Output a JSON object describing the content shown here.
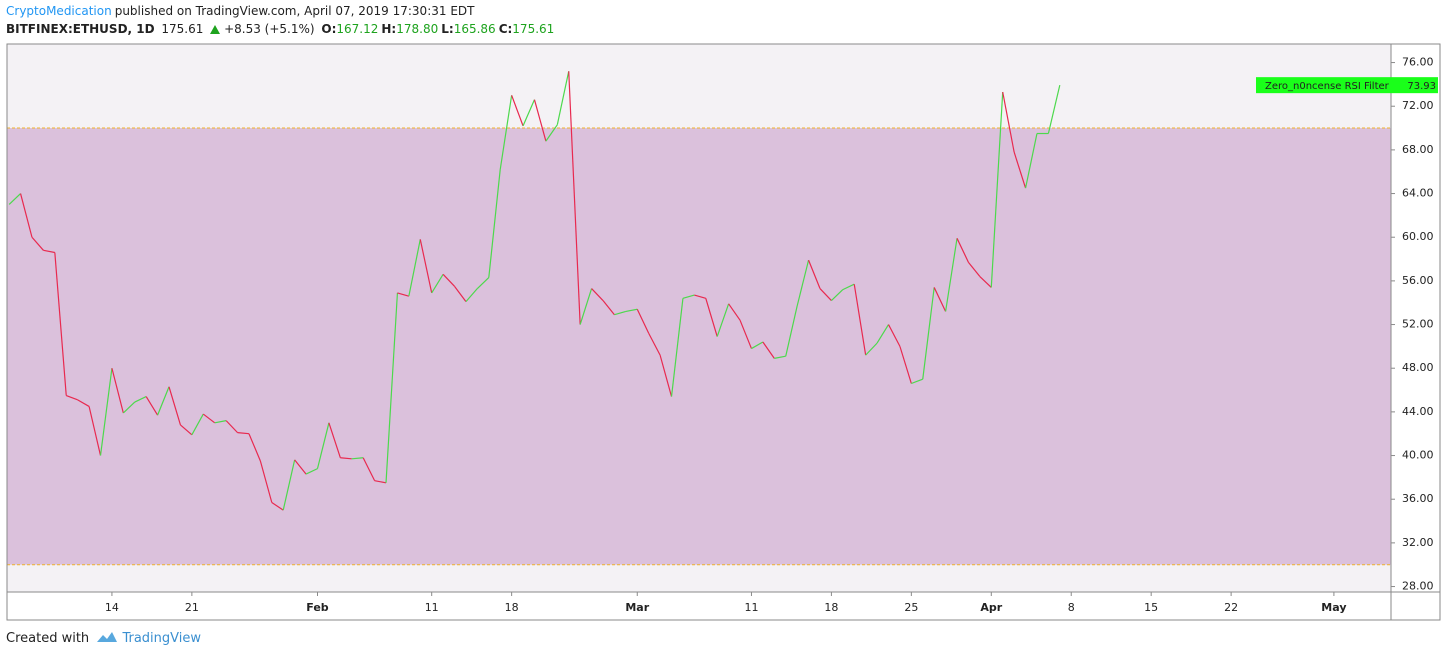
{
  "header": {
    "author": "CryptoMedication",
    "published": "published on TradingView.com, April 07, 2019 17:30:31 EDT",
    "symbol": "BITFINEX:ETHUSD, 1D",
    "last": "175.61",
    "change": "+8.53 (+5.1%)",
    "ohlc": [
      {
        "label": "O:",
        "value": "167.12"
      },
      {
        "label": "H:",
        "value": "178.80"
      },
      {
        "label": "L:",
        "value": "165.86"
      },
      {
        "label": "C:",
        "value": "175.61"
      }
    ]
  },
  "footer": {
    "created": "Created with",
    "brand": "TradingView"
  },
  "chart_data": {
    "type": "line",
    "x": [
      "2019-01-05",
      "2019-01-06",
      "2019-01-07",
      "2019-01-08",
      "2019-01-09",
      "2019-01-10",
      "2019-01-11",
      "2019-01-12",
      "2019-01-13",
      "2019-01-14",
      "2019-01-15",
      "2019-01-16",
      "2019-01-17",
      "2019-01-18",
      "2019-01-19",
      "2019-01-20",
      "2019-01-21",
      "2019-01-22",
      "2019-01-23",
      "2019-01-24",
      "2019-01-25",
      "2019-01-26",
      "2019-01-27",
      "2019-01-28",
      "2019-01-29",
      "2019-01-30",
      "2019-01-31",
      "2019-02-01",
      "2019-02-02",
      "2019-02-03",
      "2019-02-04",
      "2019-02-05",
      "2019-02-06",
      "2019-02-07",
      "2019-02-08",
      "2019-02-09",
      "2019-02-10",
      "2019-02-11",
      "2019-02-12",
      "2019-02-13",
      "2019-02-14",
      "2019-02-15",
      "2019-02-16",
      "2019-02-17",
      "2019-02-18",
      "2019-02-19",
      "2019-02-20",
      "2019-02-21",
      "2019-02-22",
      "2019-02-23",
      "2019-02-24",
      "2019-02-25",
      "2019-02-26",
      "2019-02-27",
      "2019-02-28",
      "2019-03-01",
      "2019-03-02",
      "2019-03-03",
      "2019-03-04",
      "2019-03-05",
      "2019-03-06",
      "2019-03-07",
      "2019-03-08",
      "2019-03-09",
      "2019-03-10",
      "2019-03-11",
      "2019-03-12",
      "2019-03-13",
      "2019-03-14",
      "2019-03-15",
      "2019-03-16",
      "2019-03-17",
      "2019-03-18",
      "2019-03-19",
      "2019-03-20",
      "2019-03-21",
      "2019-03-22",
      "2019-03-23",
      "2019-03-24",
      "2019-03-25",
      "2019-03-26",
      "2019-03-27",
      "2019-03-28",
      "2019-03-29",
      "2019-03-30",
      "2019-03-31",
      "2019-04-01",
      "2019-04-02",
      "2019-04-03",
      "2019-04-04",
      "2019-04-05",
      "2019-04-06",
      "2019-04-07"
    ],
    "series": [
      {
        "name": "Zero_n0ncense RSI Filter",
        "up_color": "#4cd94c",
        "down_color": "#e8294f",
        "label_color": "#1aff1a",
        "values": [
          63.0,
          64.0,
          60.0,
          58.8,
          58.6,
          45.5,
          45.1,
          44.5,
          40.0,
          48.0,
          43.9,
          44.9,
          45.4,
          43.7,
          46.3,
          42.8,
          41.9,
          43.8,
          43.0,
          43.2,
          42.1,
          42.0,
          39.5,
          35.7,
          35.0,
          39.6,
          38.3,
          38.8,
          43.0,
          39.8,
          39.7,
          39.8,
          37.7,
          37.5,
          54.9,
          54.6,
          59.8,
          54.9,
          56.6,
          55.5,
          54.1,
          55.3,
          56.3,
          66.2,
          73.0,
          70.2,
          72.6,
          68.8,
          70.3,
          75.2,
          52.0,
          55.3,
          54.2,
          52.9,
          53.2,
          53.4,
          51.2,
          49.2,
          45.4,
          54.4,
          54.7,
          54.4,
          50.9,
          53.9,
          52.4,
          49.8,
          50.4,
          48.9,
          49.1,
          53.7,
          57.9,
          55.3,
          54.2,
          55.2,
          55.7,
          49.2,
          50.3,
          52.0,
          50.0,
          46.6,
          47.0,
          55.4,
          53.2,
          59.9,
          57.7,
          56.4,
          55.4,
          73.3,
          67.8,
          64.5,
          69.5,
          69.5,
          73.93
        ]
      }
    ],
    "band": {
      "upper": 70,
      "lower": 30,
      "fill": "#dbc1dc",
      "line_color": "#f0b429"
    },
    "xlim": [
      "2019-01-04T19:30",
      "2019-05-06T00:00"
    ],
    "xticks": [
      {
        "value": "2019-01-14",
        "label": "14"
      },
      {
        "value": "2019-01-21",
        "label": "21"
      },
      {
        "value": "2019-02-01",
        "label": "Feb"
      },
      {
        "value": "2019-02-11",
        "label": "11"
      },
      {
        "value": "2019-02-18",
        "label": "18"
      },
      {
        "value": "2019-03-01",
        "label": "Mar"
      },
      {
        "value": "2019-03-11",
        "label": "11"
      },
      {
        "value": "2019-03-18",
        "label": "18"
      },
      {
        "value": "2019-03-25",
        "label": "25"
      },
      {
        "value": "2019-04-01",
        "label": "Apr"
      },
      {
        "value": "2019-04-08",
        "label": "8"
      },
      {
        "value": "2019-04-15",
        "label": "15"
      },
      {
        "value": "2019-04-22",
        "label": "22"
      },
      {
        "value": "2019-05-01",
        "label": "May"
      }
    ],
    "ylim": [
      27.5,
      77.7
    ],
    "yticks": [
      {
        "value": 28,
        "label": "28.00"
      },
      {
        "value": 32,
        "label": "32.00"
      },
      {
        "value": 36,
        "label": "36.00"
      },
      {
        "value": 40,
        "label": "40.00"
      },
      {
        "value": 44,
        "label": "44.00"
      },
      {
        "value": 48,
        "label": "48.00"
      },
      {
        "value": 52,
        "label": "52.00"
      },
      {
        "value": 56,
        "label": "56.00"
      },
      {
        "value": 60,
        "label": "60.00"
      },
      {
        "value": 64,
        "label": "64.00"
      },
      {
        "value": 68,
        "label": "68.00"
      },
      {
        "value": 72,
        "label": "72.00"
      },
      {
        "value": 76,
        "label": "76.00"
      }
    ]
  }
}
